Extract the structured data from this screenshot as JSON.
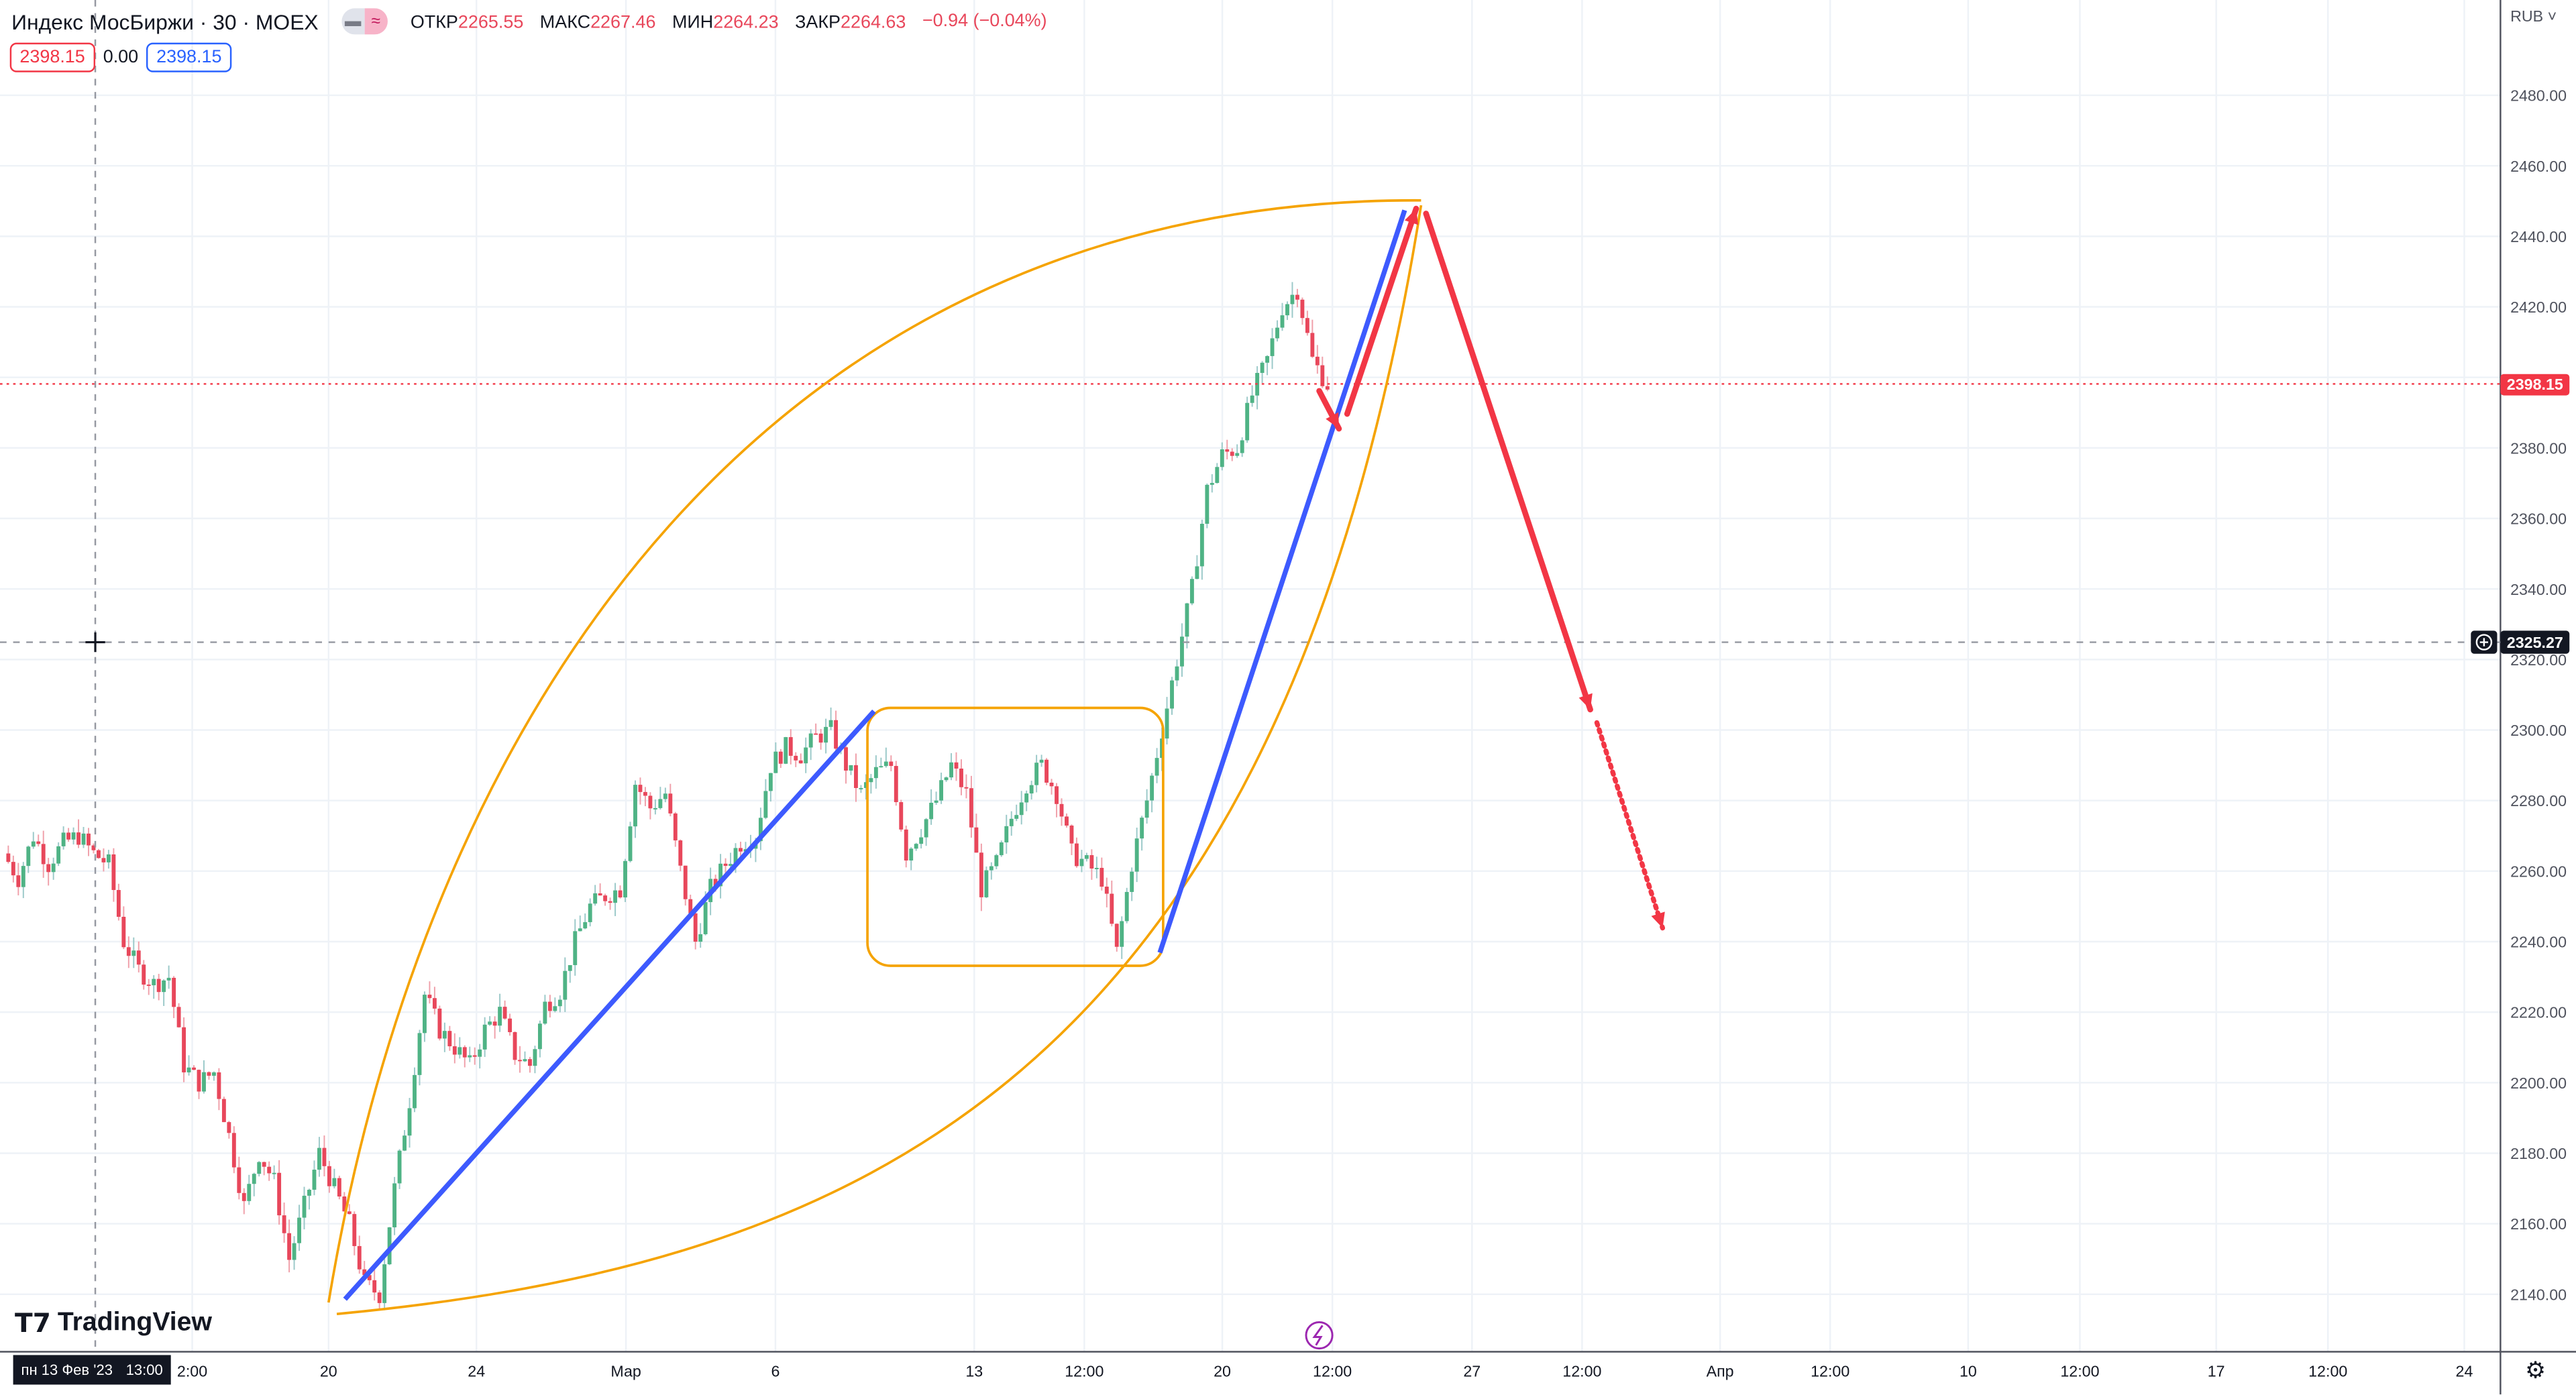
{
  "legend": {
    "symbol": "Индекс МосБиржи · 30 · MOEX",
    "open_label": "ОТКР",
    "open": "2265.55",
    "high_label": "МАКС",
    "high": "2267.46",
    "low_label": "МИН",
    "low": "2264.23",
    "close_label": "ЗАКР",
    "close": "2264.63",
    "change": "−0.94 (−0.04%)",
    "pill_left": "▬",
    "pill_right": "≈"
  },
  "quote": {
    "bid": "2398.15",
    "spread": "0.00",
    "ask": "2398.15"
  },
  "price_axis": {
    "currency": "RUB ˅",
    "ticks": [
      "2480.00",
      "2460.00",
      "2440.00",
      "2420.00",
      "2380.00",
      "2360.00",
      "2340.00",
      "2320.00",
      "2300.00",
      "2280.00",
      "2260.00",
      "2240.00",
      "2220.00",
      "2200.00",
      "2180.00",
      "2160.00",
      "2140.00"
    ],
    "last_price": "2398.15",
    "crosshair_price": "2325.27",
    "last_color": "#f23645"
  },
  "time_axis": {
    "ticks": [
      "2:00",
      "20",
      "24",
      "Мар",
      "6",
      "13",
      "12:00",
      "20",
      "12:00",
      "27",
      "12:00",
      "Апр",
      "12:00",
      "10",
      "12:00",
      "17",
      "12:00",
      "24"
    ],
    "crosshair_date": "пн 13 Фев '23",
    "crosshair_time": "13:00"
  },
  "branding": {
    "logo": "TradingView"
  },
  "colors": {
    "up": "#4fb385",
    "down": "#e8475b",
    "blue_line": "#3d5afe",
    "orange": "#f5a300",
    "red_arrow": "#f23645"
  },
  "chart_data": {
    "type": "candlestick",
    "title": "Индекс МосБиржи · 30 · MOEX",
    "ylim": [
      2130,
      2490
    ],
    "close_path": [
      2265,
      2258,
      2270,
      2262,
      2268,
      2270,
      2265,
      2262,
      2240,
      2232,
      2228,
      2230,
      2205,
      2200,
      2203,
      2185,
      2165,
      2180,
      2172,
      2150,
      2165,
      2180,
      2170,
      2160,
      2143,
      2140,
      2170,
      2195,
      2225,
      2215,
      2210,
      2205,
      2215,
      2220,
      2208,
      2205,
      2222,
      2226,
      2240,
      2250,
      2253,
      2255,
      2285,
      2278,
      2282,
      2260,
      2240,
      2255,
      2262,
      2268,
      2270,
      2290,
      2295,
      2293,
      2298,
      2300,
      2290,
      2282,
      2288,
      2290,
      2265,
      2272,
      2280,
      2290,
      2282,
      2255,
      2262,
      2275,
      2285,
      2290,
      2282,
      2265,
      2262,
      2258,
      2237,
      2262,
      2280,
      2300,
      2320,
      2340,
      2368,
      2378,
      2380,
      2395,
      2405,
      2420,
      2425,
      2405,
      2398
    ]
  }
}
